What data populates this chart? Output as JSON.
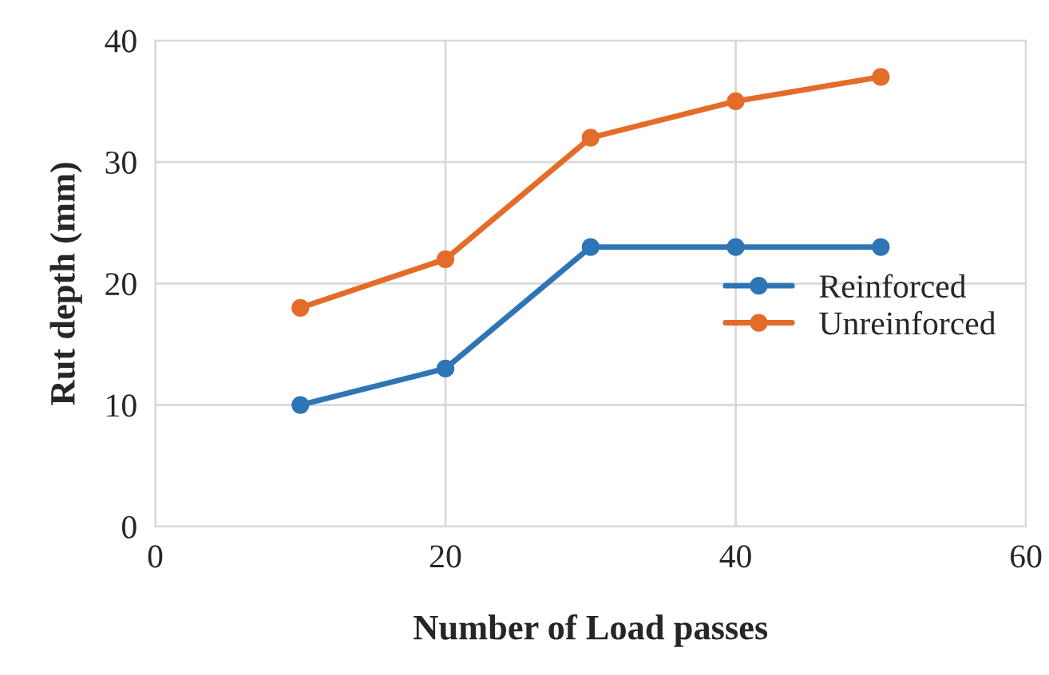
{
  "chart_data": {
    "type": "line",
    "xlabel": "Number of Load passes",
    "ylabel": "Rut depth (mm)",
    "x": [
      10,
      20,
      30,
      40,
      50
    ],
    "series": [
      {
        "name": "Reinforced",
        "color": "#2e75b6",
        "values": [
          10,
          13,
          23,
          23,
          23
        ]
      },
      {
        "name": "Unreinforced",
        "color": "#e46c2a",
        "values": [
          18,
          22,
          32,
          35,
          37
        ]
      }
    ],
    "xlim": [
      0,
      60
    ],
    "xticks": [
      0,
      20,
      40,
      60
    ],
    "ylim": [
      0,
      40
    ],
    "yticks": [
      0,
      10,
      20,
      30,
      40
    ],
    "grid": true,
    "legend": "right",
    "marker": "circle",
    "line_style": "solid"
  }
}
